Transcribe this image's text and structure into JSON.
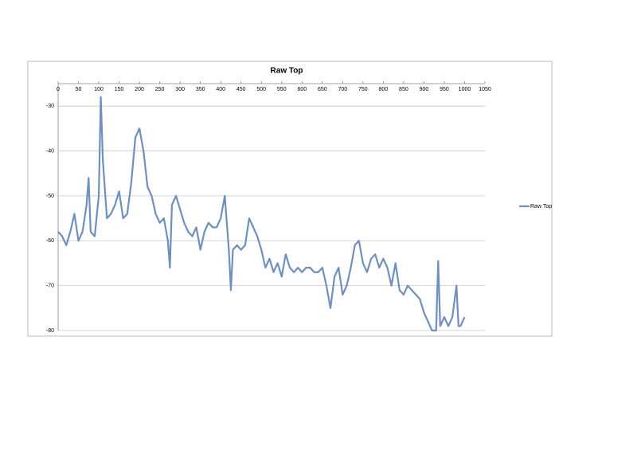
{
  "chart_data": {
    "type": "line",
    "title": "Raw Top",
    "x": [
      0,
      10,
      20,
      30,
      40,
      50,
      60,
      70,
      75,
      80,
      90,
      100,
      105,
      110,
      120,
      130,
      140,
      150,
      160,
      170,
      180,
      190,
      200,
      210,
      220,
      230,
      240,
      250,
      260,
      270,
      275,
      280,
      290,
      300,
      310,
      320,
      330,
      340,
      350,
      360,
      370,
      380,
      390,
      400,
      410,
      420,
      425,
      430,
      440,
      450,
      460,
      470,
      480,
      490,
      500,
      510,
      520,
      530,
      540,
      550,
      560,
      570,
      580,
      590,
      600,
      610,
      620,
      630,
      640,
      650,
      660,
      670,
      680,
      690,
      700,
      710,
      720,
      730,
      740,
      750,
      760,
      770,
      780,
      790,
      800,
      810,
      820,
      830,
      840,
      850,
      860,
      870,
      880,
      890,
      900,
      910,
      920,
      930,
      935,
      940,
      950,
      960,
      970,
      980,
      985,
      990,
      1000
    ],
    "series": [
      {
        "name": "Raw Top",
        "color": "#6f8fbf",
        "values": [
          -58,
          -59,
          -61,
          -58,
          -54,
          -60,
          -58,
          -52,
          -46,
          -58,
          -59,
          -50,
          -28,
          -42,
          -55,
          -54,
          -52,
          -49,
          -55,
          -54,
          -47,
          -37,
          -35,
          -40,
          -48,
          -50,
          -54,
          -56,
          -55,
          -60,
          -66,
          -52,
          -50,
          -53,
          -56,
          -58,
          -59,
          -57,
          -62,
          -58,
          -56,
          -57,
          -57,
          -55,
          -50,
          -62,
          -71,
          -62,
          -61,
          -62,
          -61,
          -55,
          -57,
          -59,
          -62,
          -66,
          -64,
          -67,
          -65,
          -68,
          -63,
          -66,
          -67,
          -66,
          -67,
          -66,
          -66,
          -67,
          -67,
          -66,
          -70,
          -75,
          -68,
          -66,
          -72,
          -70,
          -66,
          -61,
          -60,
          -65,
          -67,
          -64,
          -63,
          -66,
          -64,
          -66,
          -70,
          -65,
          -71,
          -72,
          -70,
          -71,
          -72,
          -73,
          -76,
          -78,
          -80,
          -80,
          -64.5,
          -79,
          -77,
          -79,
          -77,
          -70,
          -79,
          -79,
          -77
        ]
      }
    ],
    "xlim": [
      0,
      1050
    ],
    "xticks": [
      0,
      50,
      100,
      150,
      200,
      250,
      300,
      350,
      400,
      450,
      500,
      550,
      600,
      650,
      700,
      750,
      800,
      850,
      900,
      950,
      1000,
      1050
    ],
    "ylim": [
      -80,
      -25
    ],
    "yticks": [
      -30,
      -40,
      -50,
      -60,
      -70,
      -80
    ],
    "grid": true,
    "legend": "right"
  }
}
